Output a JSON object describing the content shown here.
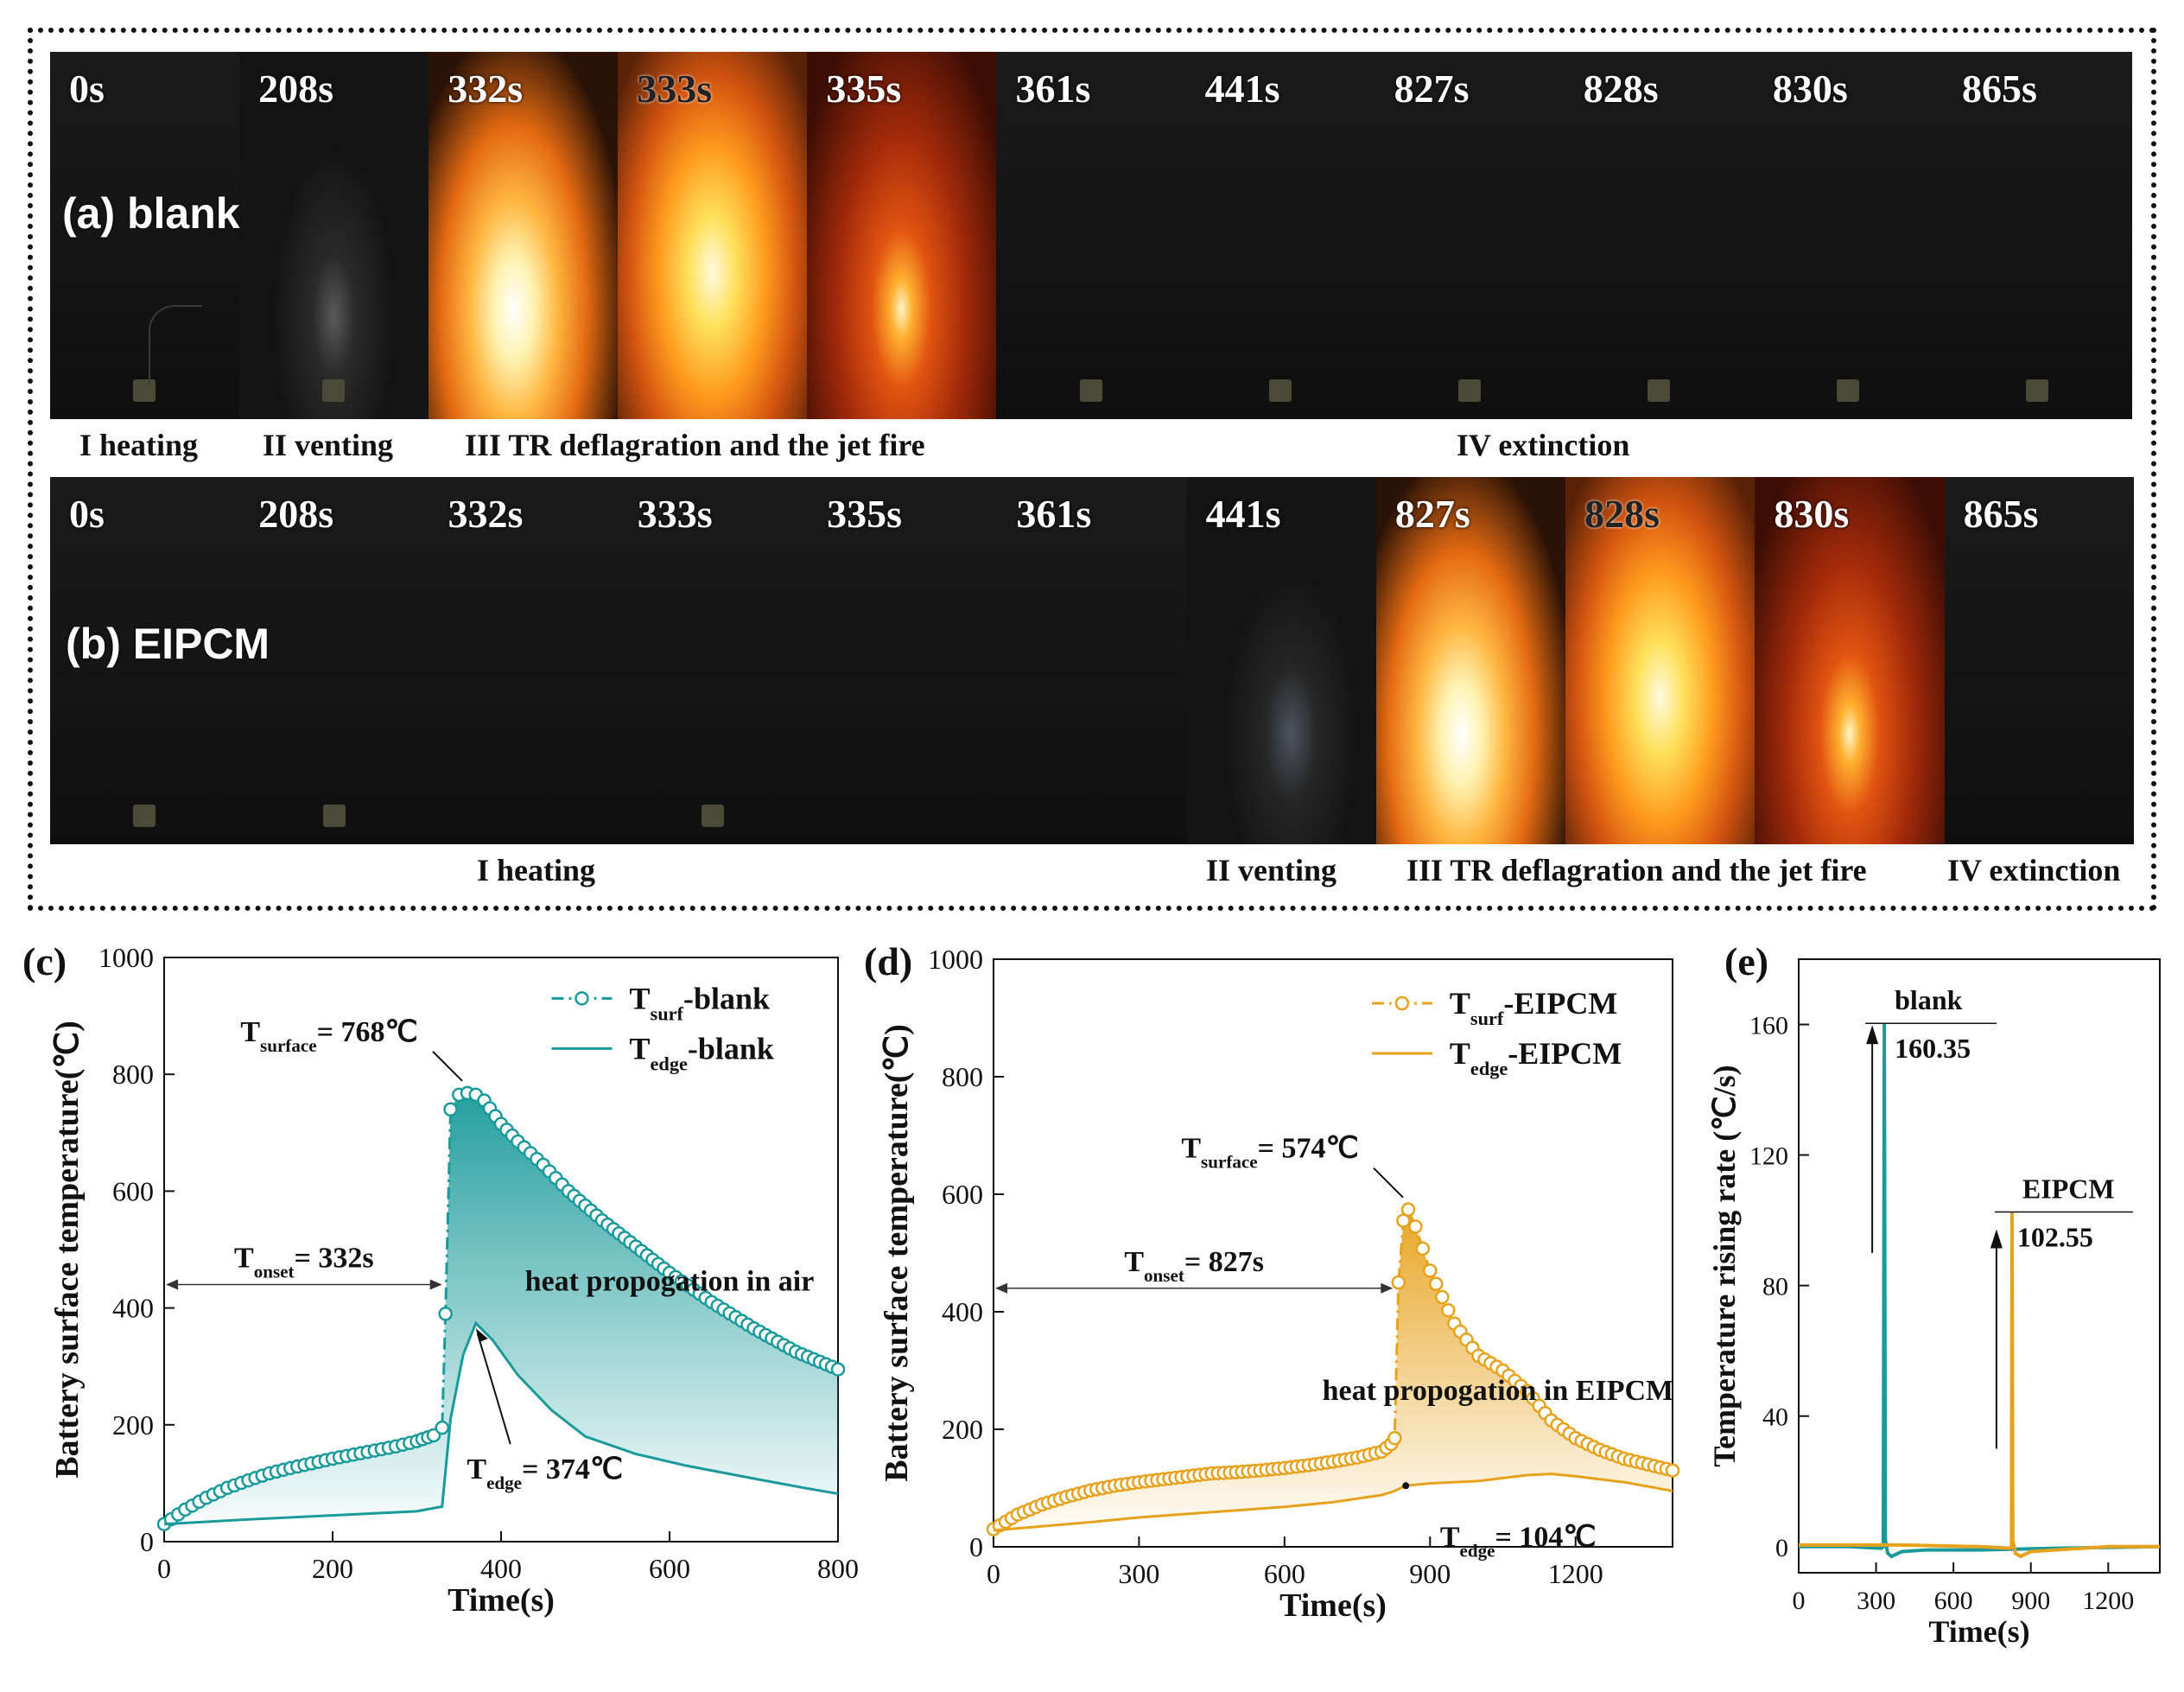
{
  "frames": {
    "times": [
      "0s",
      "208s",
      "332s",
      "333s",
      "335s",
      "361s",
      "441s",
      "827s",
      "828s",
      "830s",
      "865s"
    ],
    "row_a_label": "(a)  blank",
    "row_b_label": "(b) EIPCM",
    "row_a_phases": [
      "I heating",
      "II venting",
      "III  TR deflagration and the jet fire",
      "IV extinction"
    ],
    "row_b_phases": [
      "I heating",
      "II venting",
      "III  TR deflagration and the jet fire",
      "IV extinction"
    ]
  },
  "chart_data": [
    {
      "panel": "(c)",
      "type": "line",
      "xlabel": "Time(s)",
      "ylabel": "Battery surface temperature(℃)",
      "xlim": [
        0,
        800
      ],
      "ylim": [
        0,
        1000
      ],
      "xticks": [
        0,
        200,
        400,
        600,
        800
      ],
      "yticks": [
        0,
        200,
        400,
        600,
        800,
        1000
      ],
      "color": "#1a9a9a",
      "series": [
        {
          "name": "Tsurf-blank",
          "legend_main": "T",
          "legend_sub": "surf",
          "legend_rest": "-blank",
          "style": "dash-dot with circles",
          "x": [
            0,
            25,
            50,
            75,
            100,
            125,
            150,
            175,
            200,
            225,
            250,
            275,
            300,
            320,
            330,
            334,
            340,
            350,
            360,
            370,
            380,
            400,
            420,
            450,
            480,
            520,
            560,
            600,
            650,
            700,
            750,
            800
          ],
          "y": [
            30,
            55,
            75,
            92,
            105,
            117,
            126,
            134,
            142,
            149,
            156,
            163,
            172,
            182,
            195,
            390,
            740,
            765,
            768,
            765,
            755,
            715,
            685,
            645,
            600,
            550,
            505,
            460,
            410,
            365,
            325,
            295
          ]
        },
        {
          "name": "Tedge-blank",
          "legend_main": "T",
          "legend_sub": "edge",
          "legend_rest": "-blank",
          "style": "solid",
          "x": [
            0,
            100,
            200,
            300,
            330,
            340,
            355,
            370,
            390,
            420,
            460,
            500,
            560,
            620,
            700,
            760,
            800
          ],
          "y": [
            30,
            38,
            45,
            52,
            60,
            210,
            320,
            374,
            345,
            285,
            225,
            180,
            150,
            130,
            108,
            92,
            82
          ]
        }
      ],
      "annotations": {
        "peak_main": "T",
        "peak_sub": "surface",
        "peak_rest": "= 768℃",
        "onset_main": "T",
        "onset_sub": "onset",
        "onset_rest": "= 332s",
        "edge_main": "T",
        "edge_sub": "edge",
        "edge_rest": "= 374℃",
        "region": "heat propogation in air",
        "onset_time": 332,
        "peak_point": [
          360,
          768
        ],
        "edge_point": [
          370,
          374
        ]
      }
    },
    {
      "panel": "(d)",
      "type": "line",
      "xlabel": "Time(s)",
      "ylabel": "Battery surface temperature(℃)",
      "xlim": [
        0,
        1400
      ],
      "ylim": [
        0,
        1000
      ],
      "xticks": [
        0,
        300,
        600,
        900,
        1200
      ],
      "yticks": [
        0,
        200,
        400,
        600,
        800,
        1000
      ],
      "color": "#e6a21c",
      "series": [
        {
          "name": "Tsurf-EIPCM",
          "legend_main": "T",
          "legend_sub": "surf",
          "legend_rest": "-EIPCM",
          "style": "dash-dot with circles",
          "x": [
            0,
            50,
            100,
            150,
            200,
            250,
            300,
            350,
            400,
            450,
            500,
            550,
            600,
            650,
            700,
            750,
            800,
            820,
            827,
            835,
            845,
            855,
            870,
            900,
            950,
            1000,
            1050,
            1100,
            1150,
            1200,
            1250,
            1300,
            1350,
            1400
          ],
          "y": [
            30,
            55,
            72,
            85,
            96,
            104,
            110,
            115,
            120,
            125,
            127,
            130,
            134,
            139,
            145,
            152,
            162,
            175,
            185,
            450,
            555,
            574,
            545,
            470,
            380,
            325,
            300,
            265,
            215,
            185,
            165,
            150,
            140,
            130
          ]
        },
        {
          "name": "Tedge-EIPCM",
          "legend_main": "T",
          "legend_sub": "edge",
          "legend_rest": "-EIPCM",
          "style": "solid",
          "x": [
            0,
            100,
            200,
            300,
            400,
            500,
            600,
            700,
            800,
            827,
            850,
            900,
            1000,
            1100,
            1150,
            1200,
            1300,
            1400
          ],
          "y": [
            28,
            35,
            42,
            50,
            56,
            62,
            68,
            76,
            88,
            95,
            104,
            108,
            112,
            122,
            124,
            120,
            110,
            95
          ]
        }
      ],
      "annotations": {
        "peak_main": "T",
        "peak_sub": "surface",
        "peak_rest": "= 574℃",
        "onset_main": "T",
        "onset_sub": "onset",
        "onset_rest": "= 827s",
        "edge_main": "T",
        "edge_sub": "edge",
        "edge_rest": "= 104℃",
        "region": "heat propogation in EIPCM",
        "onset_time": 827,
        "peak_point": [
          855,
          574
        ],
        "edge_point": [
          850,
          104
        ]
      }
    },
    {
      "panel": "(e)",
      "type": "line",
      "xlabel": "Time(s)",
      "ylabel": "Temperature rising rate (℃/s)",
      "xlim": [
        0,
        1400
      ],
      "ylim": [
        -8,
        180
      ],
      "xticks": [
        0,
        300,
        600,
        900,
        1200
      ],
      "yticks": [
        0,
        40,
        80,
        120,
        160
      ],
      "series": [
        {
          "name": "blank",
          "color": "#1a9a9a",
          "x": [
            0,
            200,
            320,
            328,
            332,
            336,
            345,
            360,
            400,
            500,
            700,
            1000,
            1400
          ],
          "y": [
            0,
            0,
            -0.5,
            0,
            160.35,
            2,
            -2,
            -3,
            -1.5,
            -1,
            -1,
            -0.5,
            0
          ]
        },
        {
          "name": "EIPCM",
          "color": "#e6a21c",
          "x": [
            0,
            400,
            700,
            820,
            825,
            827,
            830,
            840,
            860,
            900,
            1000,
            1100,
            1200,
            1400
          ],
          "y": [
            0.5,
            0.5,
            0,
            -0.5,
            0,
            102.55,
            2,
            -2,
            -3,
            -1.5,
            -1,
            -0.5,
            0,
            0
          ]
        }
      ],
      "annotations": {
        "blank_label": "blank",
        "blank_value": "160.35",
        "eipcm_label": "EIPCM",
        "eipcm_value": "102.55"
      }
    }
  ]
}
